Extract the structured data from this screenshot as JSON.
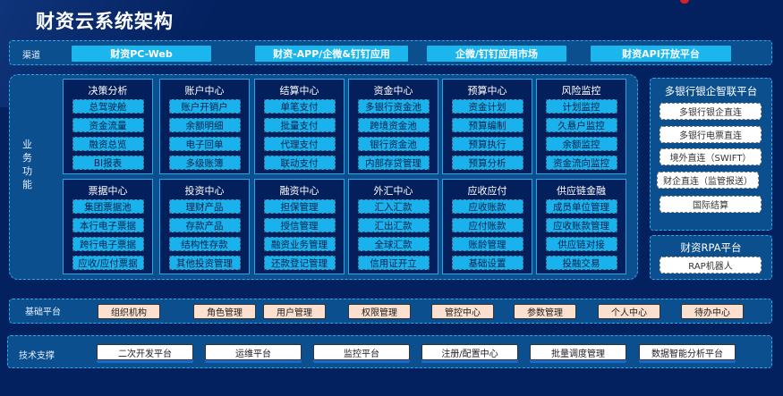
{
  "title": "财资云系统架构",
  "channels": {
    "label": "渠道",
    "items": [
      "财资PC-Web",
      "财资-APP/企微&钉钉应用",
      "企微/钉钉应用市场",
      "财资API开放平台"
    ]
  },
  "business": {
    "label": "业务功能",
    "modules": [
      {
        "title": "决策分析",
        "items": [
          "总驾驶舱",
          "资金流量",
          "融资总览",
          "BI报表"
        ]
      },
      {
        "title": "账户中心",
        "items": [
          "账户开销户",
          "余额明细",
          "电子回单",
          "多级账簿"
        ]
      },
      {
        "title": "结算中心",
        "items": [
          "单笔支付",
          "批量支付",
          "代理支付",
          "联动支付"
        ]
      },
      {
        "title": "资金中心",
        "items": [
          "多银行资金池",
          "跨境资金池",
          "银行资金池",
          "内部存贷管理"
        ]
      },
      {
        "title": "预算中心",
        "items": [
          "资金计划",
          "预算编制",
          "预算执行",
          "预算分析"
        ]
      },
      {
        "title": "风险监控",
        "items": [
          "计划监控",
          "久悬户监控",
          "余额监控",
          "资金流向监控"
        ]
      },
      {
        "title": "票据中心",
        "items": [
          "集团票据池",
          "本行电子票据",
          "跨行电子票据",
          "应收/应付票据"
        ]
      },
      {
        "title": "投资中心",
        "items": [
          "理财产品",
          "存款产品",
          "结构性存款",
          "其他投资管理"
        ]
      },
      {
        "title": "融资中心",
        "items": [
          "担保管理",
          "授信管理",
          "融资业务管理",
          "还款登记管理"
        ]
      },
      {
        "title": "外汇中心",
        "items": [
          "汇入汇款",
          "汇出汇款",
          "全球汇款",
          "信用证开立"
        ]
      },
      {
        "title": "应收应付",
        "items": [
          "应收账款",
          "应付账款",
          "账龄管理",
          "基础设置"
        ]
      },
      {
        "title": "供应链金融",
        "items": [
          "成员单位管理",
          "应收账款管理",
          "供应链对接",
          "投融交易"
        ]
      }
    ]
  },
  "bank": {
    "title": "多银行银企智联平台",
    "items": [
      "多银行银企直连",
      "多银行电票直连",
      "境外直连（SWIFT）",
      "财企直连（监管报送）",
      "国际结算"
    ]
  },
  "rpa": {
    "title": "财资RPA平台",
    "items": [
      "RAP机器人"
    ]
  },
  "base": {
    "label": "基础平台",
    "items": [
      "组织机构",
      "角色管理",
      "用户管理",
      "权限管理",
      "管控中心",
      "参数管理",
      "个人中心",
      "待办中心"
    ]
  },
  "tech": {
    "label": "技术支撑",
    "items": [
      "二次开发平台",
      "运维平台",
      "监控平台",
      "注册/配置中心",
      "批量调度管理",
      "数据智能分析平台"
    ]
  },
  "colors": {
    "background": "#03205f",
    "panel": "#0c4f8e",
    "button": "#1cb6ee",
    "base_button": "#fbe0d0"
  }
}
